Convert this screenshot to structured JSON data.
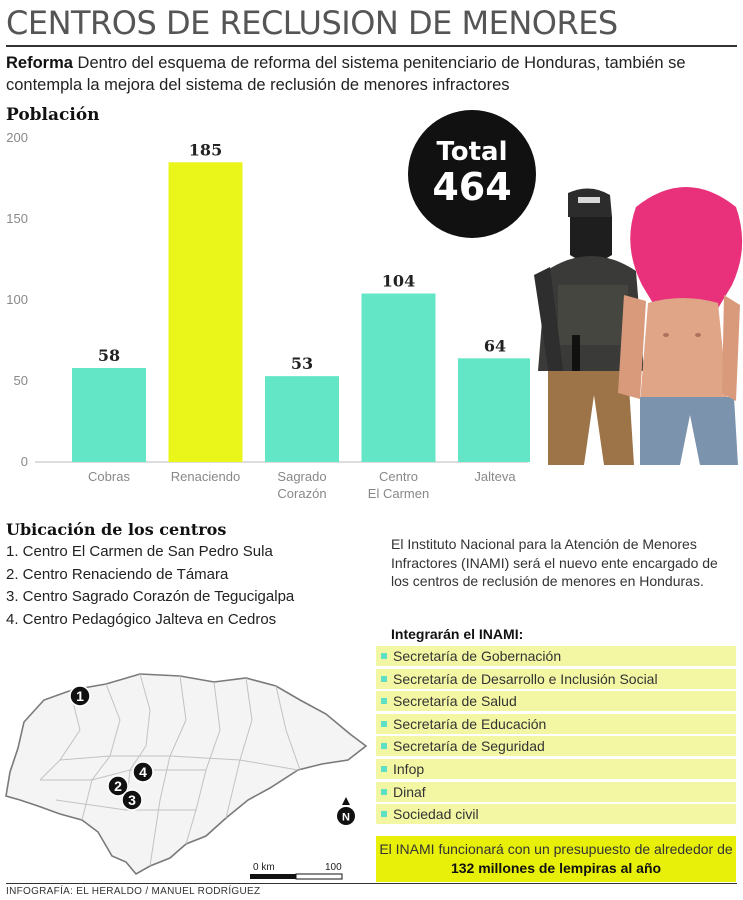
{
  "header": {
    "title": "CENTROS DE RECLUSION DE MENORES",
    "intro_lead": "Reforma",
    "intro_text": " Dentro del esquema de reforma del sistema penitenciario de Honduras, también se contempla la mejora del sistema de reclusión de menores infractores"
  },
  "chart_data": {
    "type": "bar",
    "title": "Población",
    "categories": [
      "Cobras",
      "Renaciendo",
      "Sagrado Corazón",
      "Centro El Carmen",
      "Jalteva"
    ],
    "category_lines": [
      [
        "Cobras"
      ],
      [
        "Renaciendo"
      ],
      [
        "Sagrado",
        "Corazón"
      ],
      [
        "Centro",
        "El Carmen"
      ],
      [
        "Jalteva"
      ]
    ],
    "values": [
      58,
      185,
      53,
      104,
      64
    ],
    "bar_colors": [
      "#63e6c6",
      "#eaf51a",
      "#63e6c6",
      "#63e6c6",
      "#63e6c6"
    ],
    "ylim": [
      0,
      200
    ],
    "yticks": [
      0,
      50,
      100,
      150,
      200
    ],
    "grid": false,
    "xlabel": "",
    "ylabel": ""
  },
  "total": {
    "label": "Total",
    "value": "464"
  },
  "ubicacion": {
    "title": "Ubicación de los centros",
    "items": [
      "1. Centro El Carmen de San Pedro Sula",
      "2. Centro Renaciendo de Támara",
      "3. Centro Sagrado Corazón de Tegucigalpa",
      "4. Centro Pedagógico Jalteva en Cedros"
    ]
  },
  "map": {
    "markers": [
      "1",
      "2",
      "3",
      "4"
    ],
    "north": "N",
    "scale_start": "0 km",
    "scale_end": "100"
  },
  "inami": {
    "description": "El Instituto Nacional para la Atención de Menores Infractores (INAMI) será el nuevo ente encargado de los centros de reclusión de menores en Honduras.",
    "members_title": "Integrarán el INAMI:",
    "members": [
      "Secretaría de Gobernación",
      "Secretaría de Desarrollo e Inclusión Social",
      "Secretaría de Salud",
      "Secretaría de Educación",
      "Secretaría de Seguridad",
      "Infop",
      "Dinaf",
      "Sociedad civil"
    ],
    "budget_text": "El INAMI funcionará con un presupuesto de alrededor de ",
    "budget_bold": "132 millones de lempiras al año"
  },
  "credit": "INFOGRAFÍA: EL HERALDO / MANUEL RODRÍGUEZ",
  "colors": {
    "bar": "#63e6c6",
    "highlight": "#eaf51a",
    "member_bg": "#f3f7a4",
    "budget_bg": "#e8f00a"
  }
}
